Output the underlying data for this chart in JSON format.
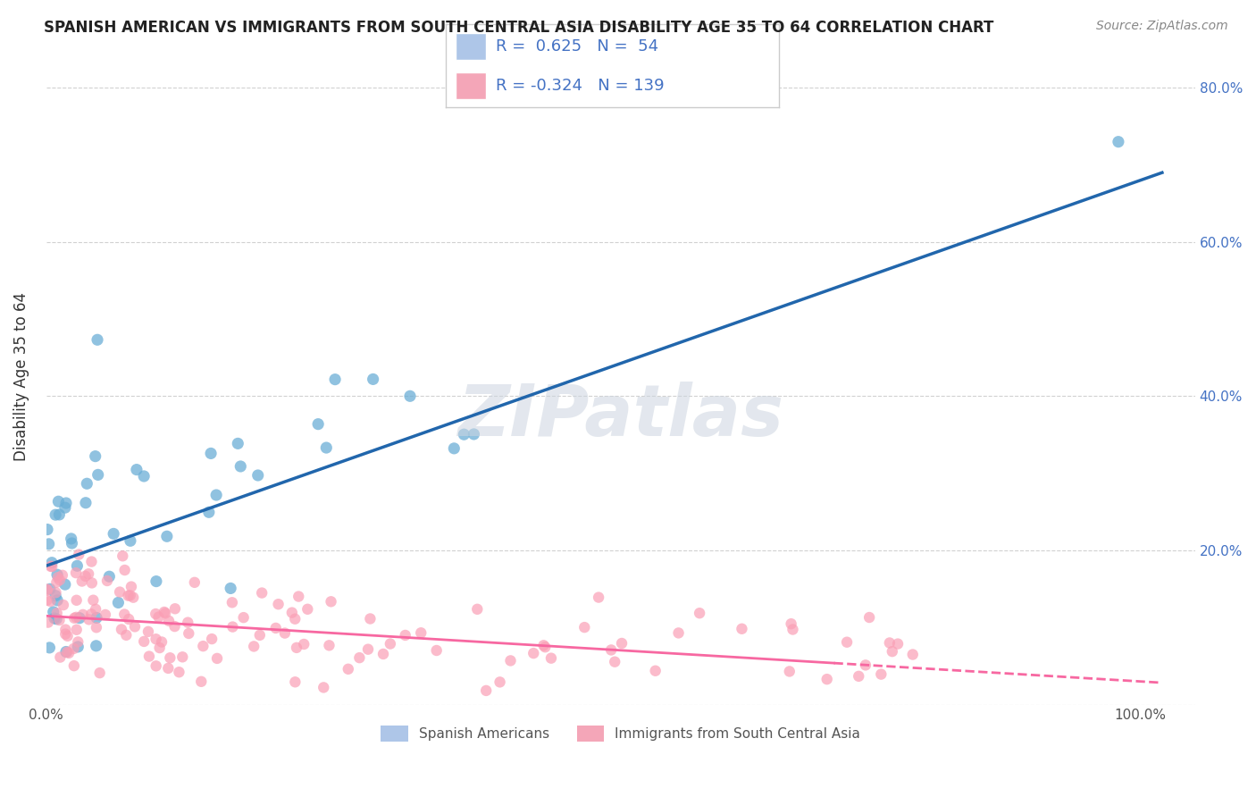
{
  "title": "SPANISH AMERICAN VS IMMIGRANTS FROM SOUTH CENTRAL ASIA DISABILITY AGE 35 TO 64 CORRELATION CHART",
  "source": "Source: ZipAtlas.com",
  "ylabel": "Disability Age 35 to 64",
  "ylim": [
    0,
    0.85
  ],
  "xlim": [
    0,
    1.05
  ],
  "yticks": [
    0.0,
    0.2,
    0.4,
    0.6,
    0.8
  ],
  "ytick_labels": [
    "",
    "20.0%",
    "40.0%",
    "60.0%",
    "80.0%"
  ],
  "blue_color": "#6baed6",
  "pink_color": "#fa9fb5",
  "blue_line_color": "#2166ac",
  "pink_line_color": "#f768a1",
  "blue_intercept": 0.18,
  "blue_slope": 0.5,
  "pink_intercept": 0.115,
  "pink_slope": -0.085,
  "n_blue": 54,
  "n_pink": 139
}
